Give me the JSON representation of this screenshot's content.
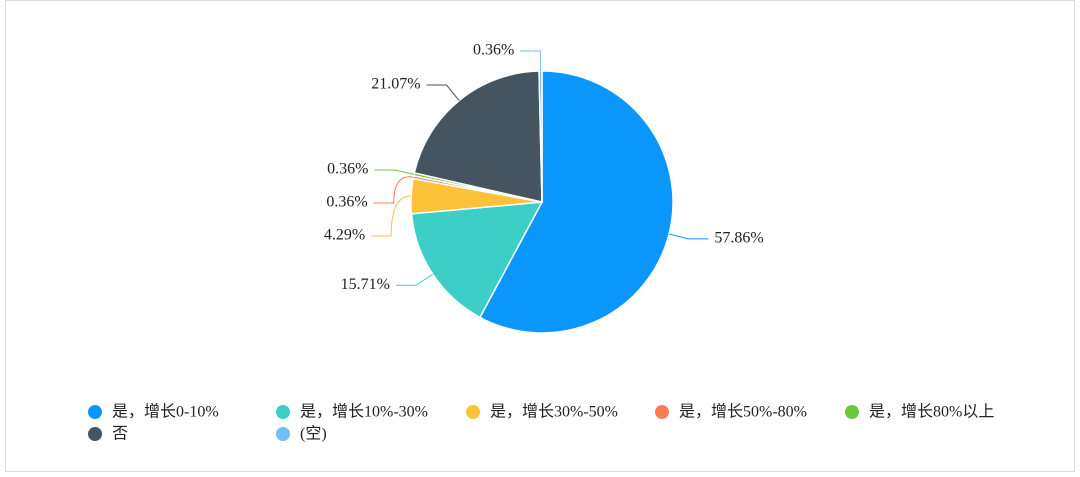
{
  "chart_data": {
    "type": "pie",
    "categories": [
      "是，增长0-10%",
      "是，增长10%-30%",
      "是，增长30%-50%",
      "是，增长50%-80%",
      "是，增长80%以上",
      "否",
      "(空)"
    ],
    "values": [
      57.86,
      15.71,
      4.29,
      0.36,
      0.36,
      21.07,
      0.36
    ],
    "value_labels": [
      "57.86%",
      "15.71%",
      "4.29%",
      "0.36%",
      "0.36%",
      "21.07%",
      "0.36%"
    ],
    "colors": [
      "#0b96fb",
      "#3dcfc7",
      "#fbc23a",
      "#fa7b55",
      "#6cc93e",
      "#45555f",
      "#72bef8"
    ],
    "legend": "bottom-left"
  }
}
